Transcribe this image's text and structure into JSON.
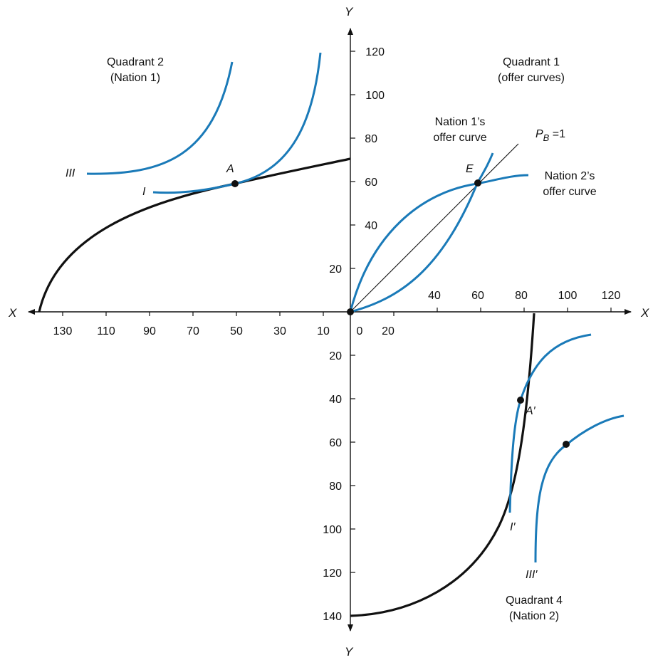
{
  "axes": {
    "y_top_label": "Y",
    "y_bottom_label": "Y",
    "x_left_label": "X",
    "x_right_label": "X",
    "y_up_ticks": [
      "20",
      "40",
      "60",
      "80",
      "100",
      "120"
    ],
    "y_down_ticks": [
      "20",
      "40",
      "60",
      "80",
      "100",
      "120",
      "140"
    ],
    "x_right_ticks": [
      "40",
      "60",
      "80",
      "100",
      "120"
    ],
    "x_below_ticks": [
      "0",
      "20"
    ],
    "x_left_ticks": [
      "130",
      "110",
      "90",
      "70",
      "50",
      "30",
      "10"
    ]
  },
  "quadrant1": {
    "title_line1": "Quadrant 1",
    "title_line2": "(offer curves)",
    "nation1_line1": "Nation 1’s",
    "nation1_line2": "offer curve",
    "nation2_line1": "Nation 2’s",
    "nation2_line2": "offer curve",
    "price_line_subject": "P",
    "price_line_subscript": "B",
    "price_line_value": " =1",
    "point_E": "E"
  },
  "quadrant2": {
    "title_line1": "Quadrant 2",
    "title_line2": "(Nation 1)",
    "curve_III": "III",
    "curve_I": "I",
    "point_A": "A"
  },
  "quadrant4": {
    "title_line1": "Quadrant 4",
    "title_line2": "(Nation 2)",
    "curve_I_prime": "I′",
    "curve_III_prime": "III′",
    "point_A_prime": "A′"
  },
  "colors": {
    "indifference_curve": "#1a7ab8",
    "frontier": "#111111",
    "axis": "#111111"
  },
  "chart_data": {
    "type": "line",
    "series": [
      {
        "x": [
          140,
          120,
          100,
          80,
          60,
          50,
          40,
          20,
          0
        ],
        "y": [
          0,
          35,
          44,
          51,
          56,
          59,
          61,
          65,
          70
        ]
      },
      {
        "x": [
          0,
          30,
          60,
          80
        ],
        "y": [
          0,
          35,
          60,
          63
        ]
      },
      {
        "x": [
          0,
          30,
          60,
          75
        ],
        "y": [
          0,
          20,
          60,
          72
        ]
      },
      {
        "x": [
          0,
          80
        ],
        "y": [
          0,
          80
        ]
      },
      {
        "x": [
          0,
          20,
          40,
          60,
          80,
          85
        ],
        "y": [
          -140,
          -137,
          -125,
          -100,
          -45,
          0
        ]
      }
    ],
    "points": [
      {
        "name": "A",
        "x": 50,
        "y": 59
      },
      {
        "name": "E",
        "x": 60,
        "y": 60
      },
      {
        "name": "A′",
        "x": 80,
        "y": -40
      },
      {
        "x": 100,
        "y": -61
      }
    ]
  }
}
